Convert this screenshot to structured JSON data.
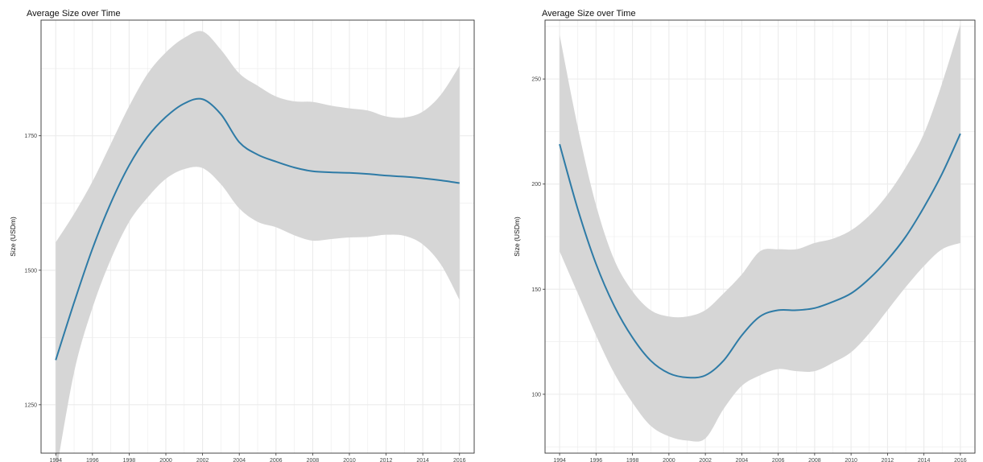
{
  "chart_data": [
    {
      "type": "line",
      "title": "Average Size over Time",
      "xlabel": "",
      "ylabel": "Size (USDm)",
      "xlim": [
        1993.2,
        2016.8
      ],
      "ylim": [
        1160,
        1965
      ],
      "xticks": [
        1994,
        1996,
        1998,
        2000,
        2002,
        2004,
        2006,
        2008,
        2010,
        2012,
        2014,
        2016
      ],
      "yticks": [
        1250,
        1500,
        1750
      ],
      "grid": true,
      "legend": "none",
      "colors": {
        "line": "#2e7ba6",
        "band": "#d6d6d6",
        "grid": "#ebebeb",
        "border": "#333333"
      },
      "x": [
        1994,
        1995,
        1996,
        1997,
        1998,
        1999,
        2000,
        2001,
        2002,
        2003,
        2004,
        2005,
        2006,
        2007,
        2008,
        2009,
        2010,
        2011,
        2012,
        2013,
        2014,
        2015,
        2016
      ],
      "series": [
        {
          "values": [
            1333,
            1440,
            1540,
            1625,
            1695,
            1748,
            1785,
            1810,
            1818,
            1790,
            1738,
            1715,
            1702,
            1691,
            1684,
            1682,
            1681,
            1679,
            1676,
            1674,
            1671,
            1667,
            1662
          ],
          "lower": [
            1120,
            1310,
            1430,
            1520,
            1590,
            1635,
            1670,
            1688,
            1690,
            1660,
            1615,
            1590,
            1580,
            1565,
            1555,
            1558,
            1561,
            1562,
            1566,
            1564,
            1548,
            1510,
            1445
          ],
          "upper": [
            1552,
            1605,
            1665,
            1735,
            1805,
            1865,
            1905,
            1932,
            1944,
            1910,
            1866,
            1843,
            1823,
            1814,
            1813,
            1806,
            1801,
            1797,
            1786,
            1784,
            1795,
            1827,
            1880
          ]
        }
      ]
    },
    {
      "type": "line",
      "title": "Average Size over Time",
      "xlabel": "",
      "ylabel": "Size (USDm)",
      "xlim": [
        1993.2,
        2016.8
      ],
      "ylim": [
        72,
        278
      ],
      "xticks": [
        1994,
        1996,
        1998,
        2000,
        2002,
        2004,
        2006,
        2008,
        2010,
        2012,
        2014,
        2016
      ],
      "yticks": [
        100,
        150,
        200,
        250
      ],
      "grid": true,
      "legend": "none",
      "colors": {
        "line": "#2e7ba6",
        "band": "#d6d6d6",
        "grid": "#ebebeb",
        "border": "#333333"
      },
      "x": [
        1994,
        1995,
        1996,
        1997,
        1998,
        1999,
        2000,
        2001,
        2002,
        2003,
        2004,
        2005,
        2006,
        2007,
        2008,
        2009,
        2010,
        2011,
        2012,
        2013,
        2014,
        2015,
        2016
      ],
      "series": [
        {
          "values": [
            219,
            188,
            162,
            142,
            127,
            116,
            110,
            108,
            109,
            116,
            128,
            137,
            140,
            140,
            141,
            144,
            148,
            155,
            164,
            175,
            189,
            205,
            224
          ],
          "lower": [
            168,
            148,
            128,
            110,
            96,
            85,
            80,
            78,
            79,
            93,
            104,
            109,
            112,
            111,
            111,
            115,
            120,
            129,
            140,
            151,
            161,
            169,
            172
          ],
          "upper": [
            271,
            227,
            190,
            164,
            149,
            140,
            137,
            137,
            140,
            148,
            157,
            168,
            169,
            169,
            172,
            174,
            178,
            185,
            195,
            208,
            224,
            248,
            276
          ]
        }
      ]
    }
  ]
}
